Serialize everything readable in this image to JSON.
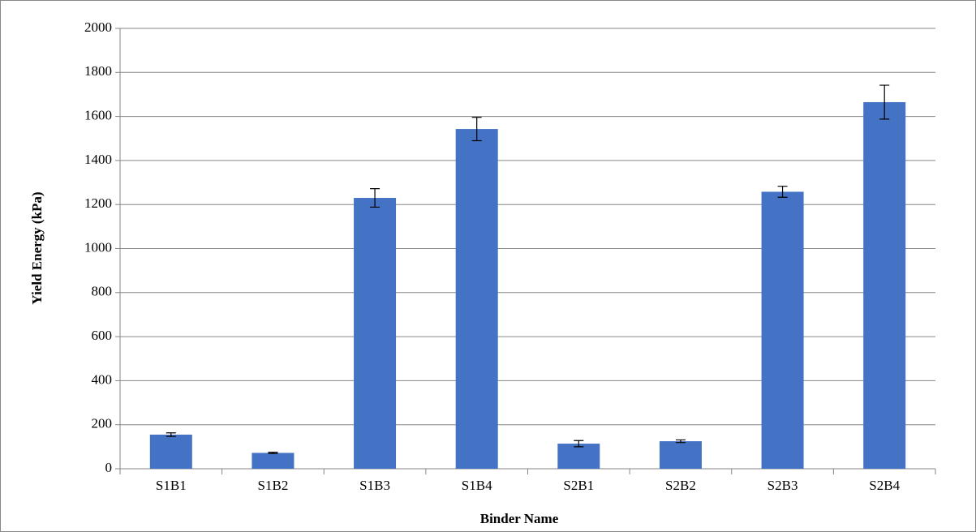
{
  "chart_data": {
    "type": "bar",
    "x_label": "Binder Name",
    "y_label": "Yield Energy (kPa)",
    "categories": [
      "S1B1",
      "S1B2",
      "S1B3",
      "S1B4",
      "S2B1",
      "S2B2",
      "S2B3",
      "S2B4"
    ],
    "values": [
      155,
      72,
      1230,
      1543,
      114,
      125,
      1258,
      1665
    ],
    "errors": [
      8,
      3,
      42,
      53,
      14,
      6,
      25,
      77
    ],
    "color": "#4472c4",
    "ylim": [
      0,
      2000
    ],
    "yticks": [
      0,
      200,
      400,
      600,
      800,
      1000,
      1200,
      1400,
      1600,
      1800,
      2000
    ],
    "grid": true
  }
}
